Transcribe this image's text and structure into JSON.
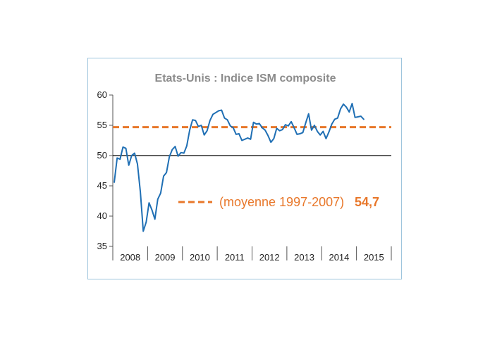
{
  "chart_data": {
    "type": "line",
    "title": "Etats-Unis : Indice ISM composite",
    "xlabel": "",
    "ylabel": "",
    "ylim": [
      35,
      60
    ],
    "yticks": [
      35,
      40,
      45,
      50,
      55,
      60
    ],
    "year_labels": [
      "2008",
      "2009",
      "2010",
      "2011",
      "2012",
      "2013",
      "2014",
      "2015"
    ],
    "x_start": "2008-01",
    "x_end": "2015-12",
    "reference_line": {
      "value": 50,
      "color": "#000000"
    },
    "average_line": {
      "value": 54.7,
      "color": "#e8772a"
    },
    "legend": {
      "text": "(moyenne 1997-2007)",
      "value": "54,7",
      "placement": "middle-right"
    },
    "grid": false,
    "series": [
      {
        "color": "#1f6fb4",
        "values": [
          45.6,
          49.6,
          49.4,
          51.4,
          51.2,
          48.4,
          50.0,
          50.4,
          48.6,
          44.0,
          37.5,
          39.0,
          42.2,
          41.0,
          39.5,
          42.8,
          43.8,
          46.6,
          47.2,
          49.8,
          51.0,
          51.5,
          49.9,
          50.5,
          50.4,
          51.6,
          54.2,
          55.9,
          55.8,
          54.8,
          55.0,
          53.4,
          54.1,
          55.8,
          56.8,
          57.1,
          57.4,
          57.5,
          56.2,
          55.9,
          54.9,
          54.6,
          53.5,
          53.6,
          52.5,
          52.7,
          52.9,
          52.7,
          55.5,
          55.2,
          55.3,
          54.6,
          54.2,
          53.3,
          52.2,
          52.8,
          54.5,
          54.1,
          54.3,
          55.1,
          54.9,
          55.6,
          54.6,
          53.5,
          53.6,
          53.8,
          55.4,
          56.9,
          54.2,
          55.0,
          54.0,
          53.4,
          54.0,
          52.8,
          53.9,
          55.2,
          56.0,
          56.2,
          57.7,
          58.5,
          58.0,
          57.2,
          58.6,
          56.3,
          56.4,
          56.5,
          56.0
        ]
      }
    ]
  }
}
